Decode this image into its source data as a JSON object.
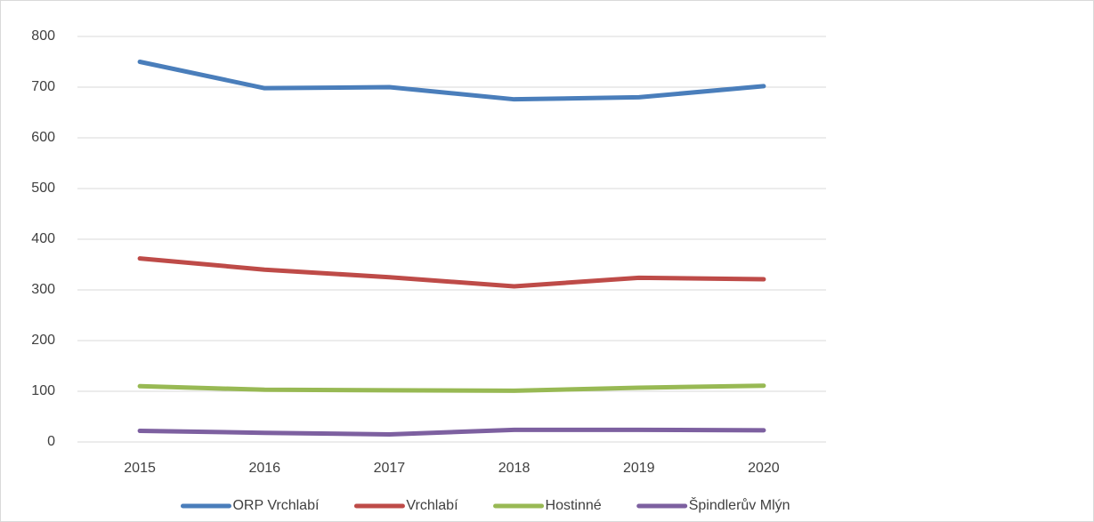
{
  "chart_data": {
    "type": "line",
    "categories": [
      "2015",
      "2016",
      "2017",
      "2018",
      "2019",
      "2020"
    ],
    "series": [
      {
        "name": "ORP Vrchlabí",
        "color": "#4a7ebb",
        "values": [
          750,
          698,
          700,
          676,
          680,
          702
        ]
      },
      {
        "name": "Vrchlabí",
        "color": "#be4b48",
        "values": [
          362,
          340,
          325,
          307,
          324,
          321
        ]
      },
      {
        "name": "Hostinné",
        "color": "#98b954",
        "values": [
          110,
          103,
          102,
          101,
          107,
          111
        ]
      },
      {
        "name": "Špindlerův Mlýn",
        "color": "#7d60a0",
        "values": [
          22,
          18,
          15,
          24,
          24,
          23
        ]
      }
    ],
    "ylim": [
      0,
      800
    ],
    "yticks": [
      0,
      100,
      200,
      300,
      400,
      500,
      600,
      700,
      800
    ],
    "grid": true,
    "legend": "bottom"
  }
}
